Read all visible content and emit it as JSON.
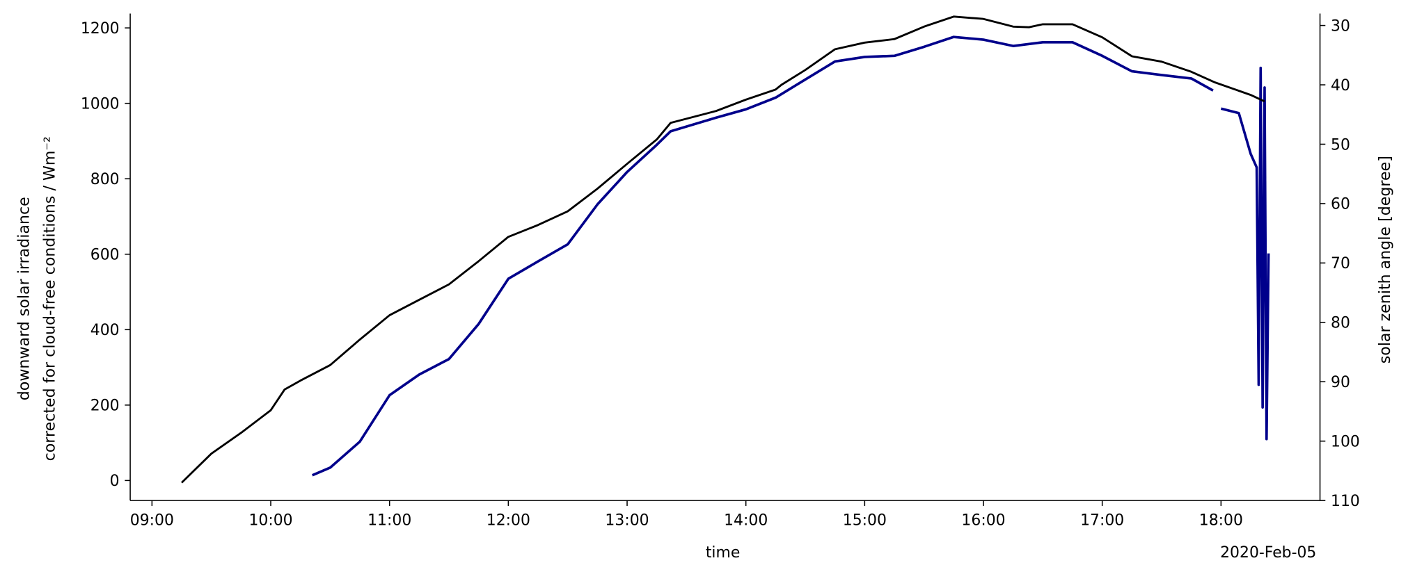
{
  "chart_data": {
    "type": "line",
    "xlabel": "time",
    "x_offset_label": "2020-Feb-05",
    "ylabel": [
      "downward solar irradiance",
      "corrected for cloud-free conditions / Wm⁻²"
    ],
    "ylabel_color": "#00008b",
    "y2label": "solar zenith angle [degree]",
    "xlim": [
      "08:49",
      "18:50"
    ],
    "xticks": [
      "09:00",
      "10:00",
      "11:00",
      "12:00",
      "13:00",
      "14:00",
      "15:00",
      "16:00",
      "17:00",
      "18:00"
    ],
    "ylim": [
      -53,
      1238
    ],
    "yticks": [
      0,
      200,
      400,
      600,
      800,
      1000,
      1200
    ],
    "y2lim": [
      110,
      28
    ],
    "y2ticks": [
      30,
      40,
      50,
      60,
      70,
      80,
      90,
      100,
      110
    ],
    "series": [
      {
        "color": "#00008b",
        "axis": "y",
        "x": [
          "10:21",
          "10:30",
          "10:45",
          "11:00",
          "11:15",
          "11:30",
          "11:45",
          "12:00",
          "12:15",
          "12:30",
          "12:45",
          "13:00",
          "13:15",
          "13:22",
          "13:45",
          "14:00",
          "14:15",
          "14:30",
          "14:45",
          "15:00",
          "15:15",
          "15:30",
          "15:45",
          "16:00",
          "16:15",
          "16:30",
          "16:45",
          "17:00",
          "17:15",
          "17:30",
          "17:45",
          "17:56",
          "17:58",
          "18:00",
          "18:09",
          "18:15",
          "18:18",
          "18:19",
          "18:20",
          "18:21",
          "18:22",
          "18:23",
          "18:24"
        ],
        "values": [
          14,
          34,
          103,
          226,
          281,
          322,
          415,
          535,
          581,
          626,
          732,
          818,
          890,
          926,
          962,
          984,
          1015,
          1063,
          1111,
          1123,
          1126,
          1150,
          1176,
          1169,
          1152,
          1162,
          1162,
          1126,
          1085,
          1075,
          1066,
          1034,
          null,
          986,
          974,
          866,
          830,
          254,
          1094,
          194,
          1042,
          110,
          602
        ]
      },
      {
        "color": "#000000",
        "axis": "y2",
        "x": [
          "09:15",
          "09:30",
          "09:45",
          "10:00",
          "10:07",
          "10:15",
          "10:30",
          "10:45",
          "11:00",
          "11:15",
          "11:30",
          "11:45",
          "12:00",
          "12:15",
          "12:30",
          "12:45",
          "13:00",
          "13:15",
          "13:22",
          "13:45",
          "14:00",
          "14:15",
          "14:18",
          "14:30",
          "14:45",
          "15:00",
          "15:15",
          "15:30",
          "15:45",
          "16:00",
          "16:15",
          "16:23",
          "16:30",
          "16:45",
          "17:00",
          "17:15",
          "17:30",
          "17:45",
          "17:57",
          "18:15",
          "18:22"
        ],
        "values": [
          107.0,
          102.1,
          98.6,
          94.8,
          91.3,
          89.8,
          87.2,
          82.9,
          78.8,
          76.2,
          73.6,
          69.7,
          65.6,
          63.6,
          61.3,
          57.5,
          53.3,
          49.2,
          46.4,
          44.4,
          42.5,
          40.8,
          40.0,
          37.5,
          34.0,
          32.9,
          32.3,
          30.2,
          28.5,
          28.9,
          30.2,
          30.3,
          29.8,
          29.8,
          32.0,
          35.2,
          36.1,
          37.8,
          39.6,
          41.7,
          42.8
        ]
      }
    ]
  }
}
